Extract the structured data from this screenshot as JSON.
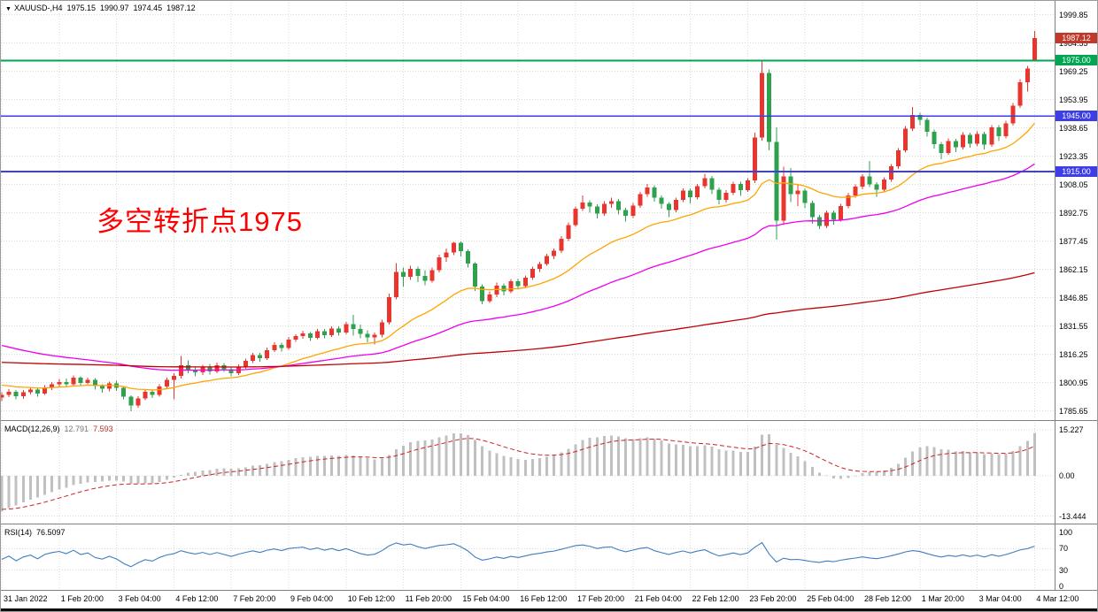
{
  "title": {
    "marker": "▼",
    "symbol_period": "XAUUSD-,H4",
    "open": "1975.15",
    "high": "1990.97",
    "low": "1974.45",
    "close": "1987.12"
  },
  "annotation": {
    "text": "多空转折点1975",
    "color": "#FF0000"
  },
  "indicators": {
    "macd": {
      "label": "MACD(12,26,9)",
      "main_value": "12.791",
      "signal_value": "7.593"
    },
    "rsi": {
      "label": "RSI(14)",
      "value": "76.5097"
    }
  },
  "chart_data": {
    "type": "candlestick",
    "symbol": "XAUUSD-",
    "timeframe": "H4",
    "title": "XAUUSD-,H4 1975.15 1990.97 1974.45 1987.12",
    "ylim": [
      1781.6,
      2004.4
    ],
    "bars_per_label": 8,
    "time_labels": [
      "31 Jan 2022",
      "1 Feb 20:00",
      "3 Feb 04:00",
      "4 Feb 12:00",
      "7 Feb 20:00",
      "9 Feb 04:00",
      "10 Feb 12:00",
      "11 Feb 20:00",
      "15 Feb 04:00",
      "16 Feb 12:00",
      "17 Feb 20:00",
      "21 Feb 04:00",
      "22 Feb 12:00",
      "23 Feb 20:00",
      "25 Feb 04:00",
      "28 Feb 12:00",
      "1 Mar 20:00",
      "3 Mar 04:00",
      "4 Mar 12:00"
    ],
    "price_ticks": [
      1999.85,
      1984.55,
      1969.25,
      1953.95,
      1938.65,
      1923.35,
      1908.05,
      1892.75,
      1877.45,
      1862.15,
      1846.85,
      1831.55,
      1816.25,
      1800.95,
      1785.65
    ],
    "colors": {
      "bull": "#E8352E",
      "bear": "#2FA14D",
      "grid": "#DADADA"
    },
    "current_price": {
      "price": 1987.12,
      "label": "1987.12",
      "color": "#C0392B"
    },
    "hlines": [
      {
        "price": 1975.0,
        "label": "1975.00",
        "color": "#00A651"
      },
      {
        "price": 1945.0,
        "label": "1945.00",
        "color": "#3E3EE8"
      },
      {
        "price": 1915.0,
        "label": "1915.00",
        "color": "#3E3EE8"
      }
    ],
    "moving_averages": [
      {
        "name": "fast",
        "period": 21,
        "seed": 1800,
        "color": "#FFA500"
      },
      {
        "name": "medium",
        "period": 55,
        "seed": 1822,
        "color": "#EE00EE"
      },
      {
        "name": "slow",
        "period": 250,
        "seed": 1812,
        "color": "#C00000"
      }
    ],
    "macd": {
      "fast": 12,
      "slow": 26,
      "signal": 9,
      "seed_fast": 1792,
      "seed_slow": 1805,
      "seed_signal": -11,
      "ylim": [
        -15.3,
        17.5
      ],
      "ticks": [
        {
          "v": 15.227,
          "label": "15.227"
        },
        {
          "v": 0,
          "label": "0.00"
        },
        {
          "v": -13.444,
          "label": "-13.444"
        }
      ],
      "hist_color": "#C0C0C0",
      "signal_color": "#CC2222"
    },
    "rsi": {
      "period": 14,
      "ylim": [
        0,
        100
      ],
      "ticks": [
        {
          "v": 100,
          "label": "100"
        },
        {
          "v": 70,
          "label": "70"
        },
        {
          "v": 30,
          "label": "30"
        },
        {
          "v": 0,
          "label": "0"
        }
      ],
      "levels": [
        70,
        30
      ],
      "color": "#3D7EBF"
    },
    "ohlc": [
      [
        1792.8,
        1795.6,
        1791.0,
        1794.2
      ],
      [
        1794.2,
        1797.3,
        1793.0,
        1796.0
      ],
      [
        1796.0,
        1796.8,
        1791.8,
        1793.5
      ],
      [
        1793.5,
        1796.9,
        1792.2,
        1795.8
      ],
      [
        1795.8,
        1798.5,
        1794.6,
        1797.2
      ],
      [
        1797.2,
        1798.0,
        1793.4,
        1795.0
      ],
      [
        1795.0,
        1799.6,
        1794.2,
        1798.4
      ],
      [
        1798.4,
        1801.2,
        1797.0,
        1800.1
      ],
      [
        1800.1,
        1802.9,
        1798.8,
        1801.3
      ],
      [
        1801.3,
        1803.2,
        1798.6,
        1800.0
      ],
      [
        1800.0,
        1804.8,
        1799.1,
        1803.6
      ],
      [
        1803.6,
        1804.4,
        1799.5,
        1800.8
      ],
      [
        1800.8,
        1803.6,
        1799.9,
        1802.5
      ],
      [
        1802.5,
        1803.3,
        1797.2,
        1799.0
      ],
      [
        1799.0,
        1800.1,
        1795.4,
        1797.6
      ],
      [
        1797.6,
        1801.5,
        1796.3,
        1800.4
      ],
      [
        1800.4,
        1802.0,
        1796.5,
        1798.0
      ],
      [
        1798.0,
        1799.1,
        1791.8,
        1793.2
      ],
      [
        1793.2,
        1794.1,
        1785.4,
        1788.6
      ],
      [
        1788.6,
        1793.5,
        1787.3,
        1792.4
      ],
      [
        1792.4,
        1797.0,
        1791.5,
        1796.0
      ],
      [
        1796.0,
        1797.1,
        1792.6,
        1794.2
      ],
      [
        1794.2,
        1800.0,
        1793.3,
        1798.8
      ],
      [
        1798.8,
        1803.6,
        1797.9,
        1802.5
      ],
      [
        1802.5,
        1805.9,
        1791.8,
        1804.6
      ],
      [
        1804.6,
        1815.3,
        1803.2,
        1810.2
      ],
      [
        1810.2,
        1812.8,
        1806.1,
        1808.0
      ],
      [
        1808.0,
        1809.4,
        1804.4,
        1806.5
      ],
      [
        1806.5,
        1810.6,
        1805.0,
        1809.3
      ],
      [
        1809.3,
        1810.9,
        1805.2,
        1807.0
      ],
      [
        1807.0,
        1811.8,
        1806.1,
        1810.4
      ],
      [
        1810.4,
        1811.6,
        1806.8,
        1808.2
      ],
      [
        1808.2,
        1809.0,
        1804.3,
        1806.0
      ],
      [
        1806.0,
        1810.7,
        1805.1,
        1809.5
      ],
      [
        1809.5,
        1813.9,
        1808.4,
        1812.6
      ],
      [
        1812.6,
        1817.0,
        1811.5,
        1815.8
      ],
      [
        1815.8,
        1816.9,
        1812.1,
        1814.0
      ],
      [
        1814.0,
        1819.8,
        1813.2,
        1818.5
      ],
      [
        1818.5,
        1822.6,
        1817.4,
        1821.3
      ],
      [
        1821.3,
        1822.4,
        1817.8,
        1819.6
      ],
      [
        1819.6,
        1825.5,
        1818.7,
        1824.2
      ],
      [
        1824.2,
        1827.1,
        1822.9,
        1826.0
      ],
      [
        1826.0,
        1828.9,
        1824.6,
        1827.4
      ],
      [
        1827.4,
        1828.3,
        1823.5,
        1825.2
      ],
      [
        1825.2,
        1830.0,
        1824.3,
        1828.8
      ],
      [
        1828.8,
        1829.9,
        1824.8,
        1826.5
      ],
      [
        1826.5,
        1831.4,
        1825.6,
        1830.2
      ],
      [
        1830.2,
        1831.3,
        1826.2,
        1828.0
      ],
      [
        1828.0,
        1833.8,
        1827.1,
        1832.6
      ],
      [
        1832.6,
        1837.5,
        1826.4,
        1830.0
      ],
      [
        1830.0,
        1832.2,
        1824.9,
        1827.2
      ],
      [
        1827.2,
        1829.1,
        1822.8,
        1825.4
      ],
      [
        1825.4,
        1828.0,
        1821.6,
        1826.8
      ],
      [
        1826.8,
        1835.0,
        1825.4,
        1833.5
      ],
      [
        1833.5,
        1849.0,
        1832.2,
        1847.2
      ],
      [
        1847.2,
        1865.4,
        1846.0,
        1860.8
      ],
      [
        1860.8,
        1863.0,
        1852.8,
        1858.0
      ],
      [
        1858.0,
        1864.0,
        1856.4,
        1862.4
      ],
      [
        1862.4,
        1863.6,
        1855.2,
        1858.6
      ],
      [
        1858.6,
        1861.7,
        1853.6,
        1856.0
      ],
      [
        1856.0,
        1863.2,
        1855.0,
        1861.8
      ],
      [
        1861.8,
        1870.0,
        1860.4,
        1868.5
      ],
      [
        1868.5,
        1873.4,
        1866.2,
        1871.2
      ],
      [
        1871.2,
        1877.1,
        1869.8,
        1876.4
      ],
      [
        1876.4,
        1877.3,
        1869.0,
        1872.0
      ],
      [
        1872.0,
        1873.0,
        1863.2,
        1865.3
      ],
      [
        1865.3,
        1866.1,
        1850.4,
        1852.8
      ],
      [
        1852.8,
        1854.0,
        1843.2,
        1845.0
      ],
      [
        1845.0,
        1850.3,
        1844.1,
        1848.6
      ],
      [
        1848.6,
        1855.0,
        1847.2,
        1853.4
      ],
      [
        1853.4,
        1854.6,
        1848.0,
        1850.2
      ],
      [
        1850.2,
        1857.0,
        1849.3,
        1855.8
      ],
      [
        1855.8,
        1857.2,
        1851.4,
        1853.0
      ],
      [
        1853.0,
        1858.8,
        1852.1,
        1857.6
      ],
      [
        1857.6,
        1863.5,
        1856.4,
        1862.3
      ],
      [
        1862.3,
        1866.2,
        1860.8,
        1865.0
      ],
      [
        1865.0,
        1870.6,
        1864.0,
        1869.4
      ],
      [
        1869.4,
        1873.4,
        1867.6,
        1872.2
      ],
      [
        1872.2,
        1880.0,
        1871.0,
        1878.6
      ],
      [
        1878.6,
        1887.4,
        1877.5,
        1886.0
      ],
      [
        1886.0,
        1896.2,
        1885.0,
        1894.8
      ],
      [
        1894.8,
        1902.0,
        1893.6,
        1898.2
      ],
      [
        1898.2,
        1899.4,
        1892.8,
        1896.0
      ],
      [
        1896.0,
        1897.2,
        1889.6,
        1892.4
      ],
      [
        1892.4,
        1899.0,
        1891.2,
        1897.6
      ],
      [
        1897.6,
        1900.8,
        1895.4,
        1899.0
      ],
      [
        1899.0,
        1900.2,
        1891.8,
        1894.2
      ],
      [
        1894.2,
        1895.4,
        1887.9,
        1891.0
      ],
      [
        1891.0,
        1898.0,
        1890.0,
        1896.5
      ],
      [
        1896.5,
        1904.0,
        1895.3,
        1902.8
      ],
      [
        1902.8,
        1908.2,
        1901.4,
        1906.4
      ],
      [
        1906.4,
        1907.6,
        1898.7,
        1901.0
      ],
      [
        1901.0,
        1902.2,
        1894.9,
        1897.5
      ],
      [
        1897.5,
        1898.6,
        1890.4,
        1894.2
      ],
      [
        1894.2,
        1901.0,
        1893.0,
        1899.8
      ],
      [
        1899.8,
        1906.0,
        1898.6,
        1904.6
      ],
      [
        1904.6,
        1905.8,
        1897.9,
        1901.2
      ],
      [
        1901.2,
        1908.4,
        1900.0,
        1907.0
      ],
      [
        1907.0,
        1913.9,
        1905.8,
        1911.4
      ],
      [
        1911.4,
        1912.6,
        1902.8,
        1905.2
      ],
      [
        1905.2,
        1906.4,
        1897.2,
        1899.8
      ],
      [
        1899.8,
        1905.0,
        1898.3,
        1903.6
      ],
      [
        1903.6,
        1909.6,
        1902.4,
        1908.4
      ],
      [
        1908.4,
        1909.6,
        1901.8,
        1905.0
      ],
      [
        1905.0,
        1911.4,
        1904.0,
        1910.2
      ],
      [
        1910.2,
        1936.0,
        1908.8,
        1933.5
      ],
      [
        1933.5,
        1974.5,
        1931.8,
        1968.4
      ],
      [
        1968.4,
        1970.2,
        1926.5,
        1931.0
      ],
      [
        1931.0,
        1938.8,
        1878.2,
        1888.4
      ],
      [
        1888.4,
        1917.6,
        1886.0,
        1912.4
      ],
      [
        1912.4,
        1916.8,
        1898.6,
        1902.8
      ],
      [
        1902.8,
        1908.0,
        1896.4,
        1904.6
      ],
      [
        1904.6,
        1905.8,
        1895.2,
        1898.0
      ],
      [
        1898.0,
        1899.2,
        1886.8,
        1890.4
      ],
      [
        1890.4,
        1891.6,
        1884.0,
        1885.6
      ],
      [
        1885.6,
        1894.0,
        1884.5,
        1892.8
      ],
      [
        1892.8,
        1894.0,
        1886.3,
        1889.0
      ],
      [
        1889.0,
        1897.6,
        1888.0,
        1896.4
      ],
      [
        1896.4,
        1903.4,
        1895.2,
        1902.2
      ],
      [
        1902.2,
        1908.0,
        1900.8,
        1906.8
      ],
      [
        1906.8,
        1913.6,
        1905.4,
        1912.4
      ],
      [
        1912.4,
        1920.8,
        1906.6,
        1908.0
      ],
      [
        1908.0,
        1909.2,
        1901.4,
        1905.2
      ],
      [
        1905.2,
        1912.0,
        1904.0,
        1910.6
      ],
      [
        1910.6,
        1919.0,
        1909.4,
        1917.8
      ],
      [
        1917.8,
        1927.6,
        1916.4,
        1926.4
      ],
      [
        1926.4,
        1939.6,
        1925.2,
        1938.2
      ],
      [
        1938.2,
        1949.9,
        1937.0,
        1945.6
      ],
      [
        1945.6,
        1946.8,
        1940.2,
        1943.0
      ],
      [
        1943.0,
        1944.2,
        1933.8,
        1936.4
      ],
      [
        1936.4,
        1937.6,
        1927.4,
        1929.8
      ],
      [
        1929.8,
        1931.0,
        1921.8,
        1925.0
      ],
      [
        1925.0,
        1933.0,
        1924.0,
        1931.6
      ],
      [
        1931.6,
        1932.8,
        1925.6,
        1928.2
      ],
      [
        1928.2,
        1936.2,
        1927.0,
        1934.8
      ],
      [
        1934.8,
        1936.0,
        1927.8,
        1930.0
      ],
      [
        1930.0,
        1936.8,
        1928.8,
        1935.4
      ],
      [
        1935.4,
        1936.6,
        1926.9,
        1929.6
      ],
      [
        1929.6,
        1940.2,
        1928.4,
        1938.8
      ],
      [
        1938.8,
        1940.0,
        1931.6,
        1934.2
      ],
      [
        1934.2,
        1942.4,
        1933.0,
        1941.0
      ],
      [
        1941.0,
        1952.0,
        1939.8,
        1950.6
      ],
      [
        1950.6,
        1965.0,
        1949.4,
        1963.4
      ],
      [
        1963.4,
        1972.2,
        1958.2,
        1970.8
      ],
      [
        1975.15,
        1990.97,
        1974.45,
        1987.12
      ]
    ]
  }
}
